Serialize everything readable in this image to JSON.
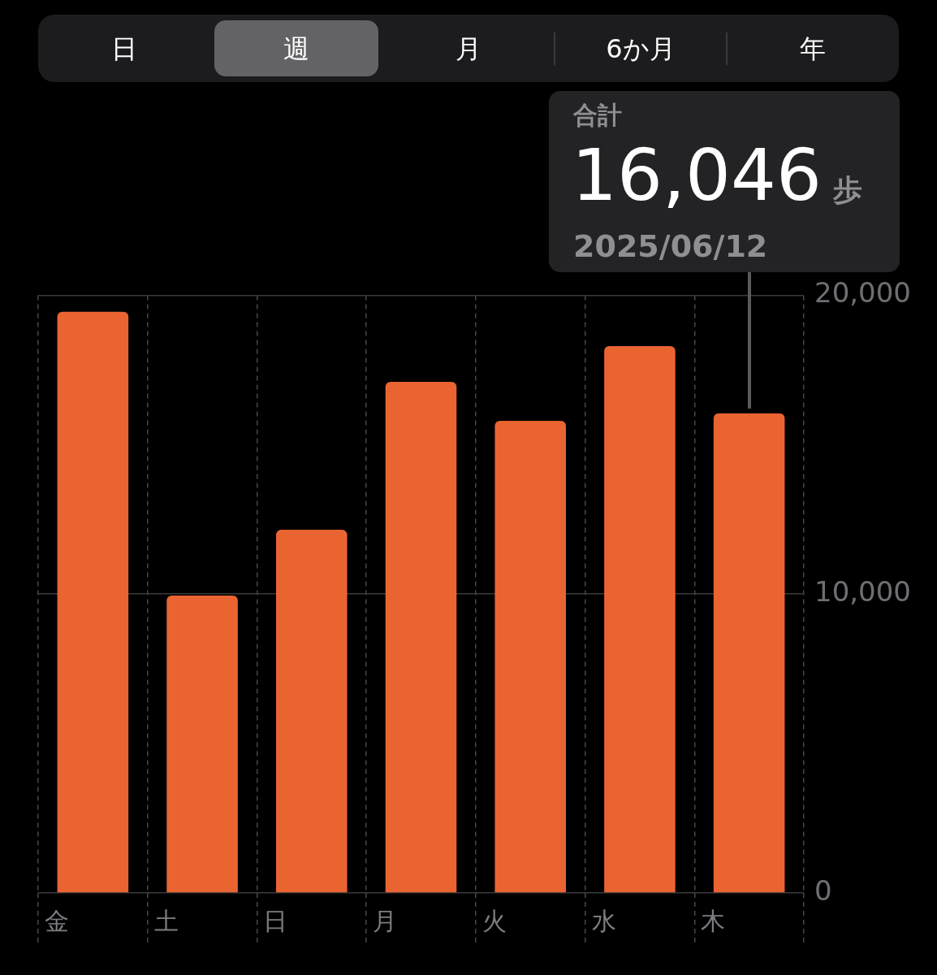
{
  "chart_data": {
    "type": "bar",
    "categories": [
      "金",
      "土",
      "日",
      "月",
      "火",
      "水",
      "木"
    ],
    "values": [
      19450,
      9950,
      12150,
      17100,
      15800,
      18300,
      16046
    ],
    "color": "#ea6432",
    "ylim": [
      0,
      20000
    ],
    "yticks": [
      0,
      {
        "value": 10000,
        "label": "10,000"
      },
      {
        "value": 20000,
        "label": "20,000"
      }
    ],
    "grid": true,
    "annotations": [
      "日",
      "週",
      "月",
      "6か月",
      "年",
      "合計",
      {
        "text": "16,046",
        "x": "木",
        "y": 16046
      },
      "歩",
      "2025/06/12"
    ]
  }
}
